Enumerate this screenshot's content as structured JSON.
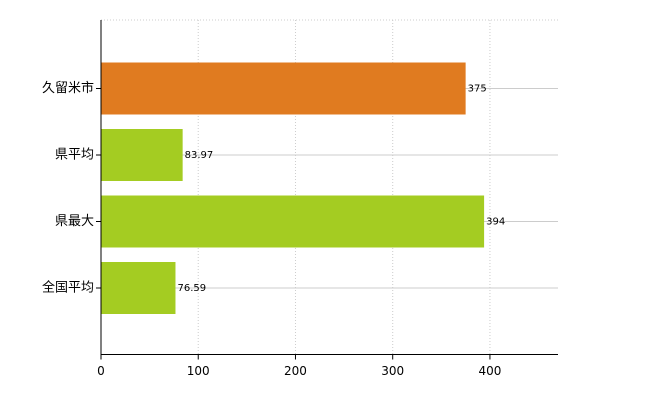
{
  "chart_data": {
    "type": "bar",
    "orientation": "horizontal",
    "categories": [
      "久留米市",
      "県平均",
      "県最大",
      "全国平均"
    ],
    "values": [
      375,
      83.97,
      394,
      76.59
    ],
    "colors": [
      "#e07b20",
      "#a4cc22",
      "#a4cc22",
      "#a4cc22"
    ],
    "xlim": [
      0,
      470
    ],
    "xticks": [
      0,
      100,
      200,
      300,
      400
    ],
    "grid": true
  }
}
